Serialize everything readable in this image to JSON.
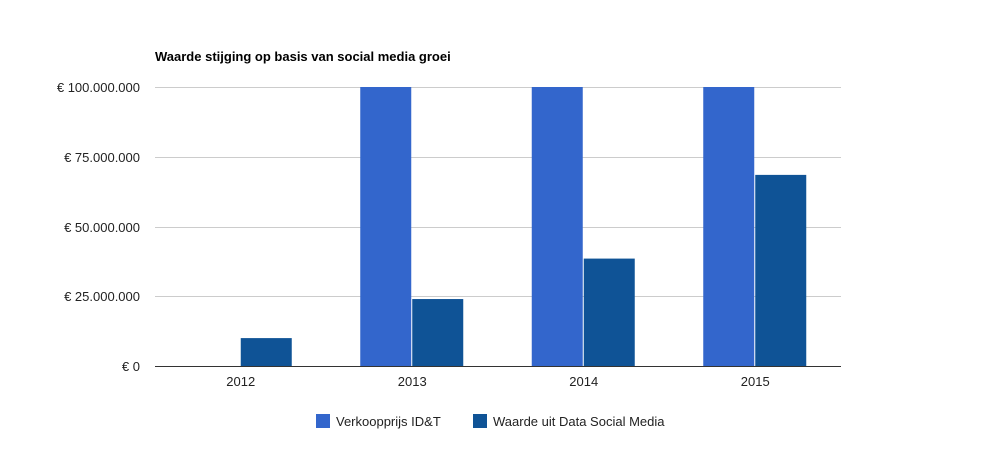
{
  "chart_data": {
    "type": "bar",
    "title": "Waarde stijging op basis van social media groei",
    "xlabel": "",
    "ylabel": "",
    "categories": [
      "2012",
      "2013",
      "2014",
      "2015"
    ],
    "series": [
      {
        "name": "Verkoopprijs ID&T",
        "color": "#3366cc",
        "values": [
          0,
          100000000,
          100000000,
          100000000
        ]
      },
      {
        "name": "Waarde uit Data Social Media",
        "color": "#0f5396",
        "values": [
          10000000,
          24000000,
          38500000,
          68500000
        ]
      }
    ],
    "ylim": [
      0,
      100000000
    ],
    "yticks": [
      0,
      25000000,
      50000000,
      75000000,
      100000000
    ],
    "ytick_labels": [
      "€ 0",
      "€ 25.000.000",
      "€ 50.000.000",
      "€ 75.000.000",
      "€ 100.000.000"
    ],
    "grid": true,
    "legend_position": "bottom"
  }
}
